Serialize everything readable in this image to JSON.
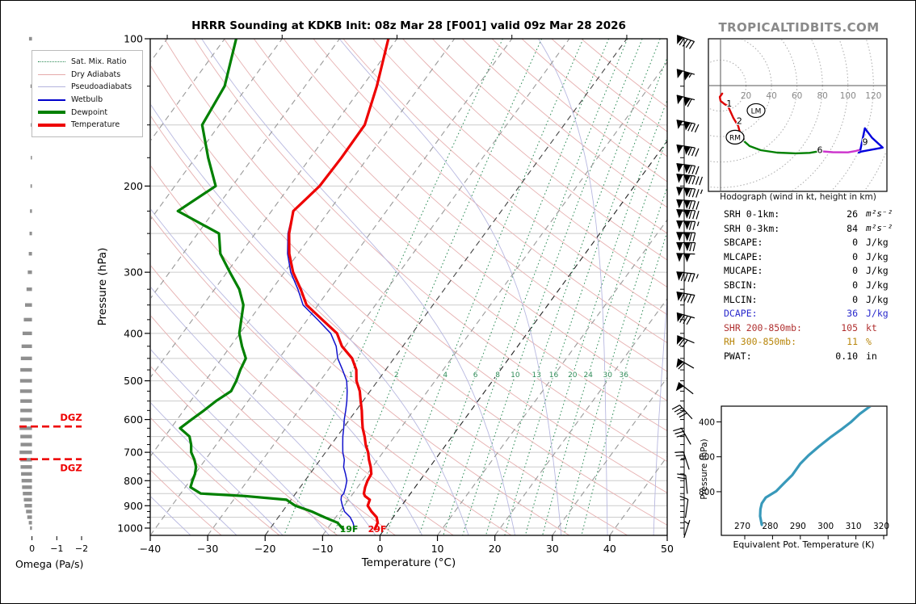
{
  "title": "HRRR Sounding at KDKB Init: 08z Mar 28 [F001] valid 09z Mar 28 2026",
  "watermark": "TROPICALTIDBITS.COM",
  "legend": {
    "items": [
      {
        "label": "Sat. Mix. Ratio",
        "color": "#2e8b57",
        "style": "dotted",
        "weight": 1.5
      },
      {
        "label": "Dry Adiabats",
        "color": "#e6aaaa",
        "style": "solid",
        "weight": 1.2
      },
      {
        "label": "Pseudoadiabats",
        "color": "#b4b4dd",
        "style": "solid",
        "weight": 1.2
      },
      {
        "label": "Wetbulb",
        "color": "#0000cc",
        "style": "solid",
        "weight": 2
      },
      {
        "label": "Dewpoint",
        "color": "#008000",
        "style": "solid",
        "weight": 4
      },
      {
        "label": "Temperature",
        "color": "#ee0000",
        "style": "solid",
        "weight": 4
      }
    ]
  },
  "stats": {
    "rows": [
      {
        "label": "SRH 0-1km:",
        "value": "26",
        "unit": "m²s⁻²",
        "math_unit": true,
        "color": "#000000"
      },
      {
        "label": "SRH 0-3km:",
        "value": "84",
        "unit": "m²s⁻²",
        "math_unit": true,
        "color": "#000000"
      },
      {
        "label": "SBCAPE:",
        "value": "0",
        "unit": "J/kg",
        "math_unit": false,
        "color": "#000000"
      },
      {
        "label": "MLCAPE:",
        "value": "0",
        "unit": "J/kg",
        "math_unit": false,
        "color": "#000000"
      },
      {
        "label": "MUCAPE:",
        "value": "0",
        "unit": "J/kg",
        "math_unit": false,
        "color": "#000000"
      },
      {
        "label": "SBCIN:",
        "value": "0",
        "unit": "J/kg",
        "math_unit": false,
        "color": "#000000"
      },
      {
        "label": "MLCIN:",
        "value": "0",
        "unit": "J/kg",
        "math_unit": false,
        "color": "#000000"
      },
      {
        "label": "DCAPE:",
        "value": "36",
        "unit": "J/kg",
        "math_unit": false,
        "color": "#2929cc"
      },
      {
        "label": "SHR 200-850mb:",
        "value": "105",
        "unit": "kt",
        "math_unit": false,
        "color": "#b03030"
      },
      {
        "label": "RH 300-850mb:",
        "value": "11",
        "unit": "%",
        "math_unit": false,
        "color": "#b8860b"
      },
      {
        "label": "PWAT:",
        "value": "0.10",
        "unit": "in",
        "math_unit": false,
        "color": "#000000"
      }
    ]
  },
  "chart_data": [
    {
      "id": "skewt",
      "type": "line",
      "xlabel": "Temperature (°C)",
      "ylabel": "Pressure (hPa)",
      "x_range": [
        -40,
        50
      ],
      "p_range": [
        100,
        1050
      ],
      "x_ticks": [
        -40,
        -30,
        -20,
        -10,
        0,
        10,
        20,
        30,
        40,
        50
      ],
      "p_ticks": [
        100,
        200,
        300,
        400,
        500,
        600,
        700,
        800,
        900,
        1000
      ],
      "mixratio_values": [
        1,
        2,
        4,
        6,
        8,
        10,
        13,
        16,
        20,
        24,
        30,
        36
      ],
      "surface_labels": {
        "dewp": "19F",
        "temp": "29F"
      },
      "series": [
        {
          "name": "Temperature",
          "color": "#ee0000",
          "width": 3.2,
          "pressure": [
            100,
            125,
            150,
            175,
            200,
            225,
            250,
            275,
            300,
            325,
            350,
            375,
            400,
            425,
            450,
            475,
            500,
            525,
            550,
            575,
            600,
            625,
            650,
            675,
            700,
            725,
            750,
            775,
            800,
            825,
            850,
            860,
            875,
            900,
            925,
            950,
            975,
            1005
          ],
          "values": [
            -61.5,
            -57.5,
            -54.7,
            -54.6,
            -54.8,
            -56.2,
            -54.1,
            -51.5,
            -48.5,
            -45.0,
            -42.0,
            -37.4,
            -33.1,
            -30.6,
            -27.3,
            -25.1,
            -23.7,
            -21.8,
            -20.4,
            -19.0,
            -17.8,
            -16.6,
            -15.2,
            -14.0,
            -12.6,
            -11.5,
            -10.3,
            -9.3,
            -9.1,
            -8.7,
            -8.1,
            -7.6,
            -6.3,
            -5.9,
            -4.5,
            -2.9,
            -2.0,
            -1.7
          ]
        },
        {
          "name": "Dewpoint",
          "color": "#008000",
          "width": 3.2,
          "pressure": [
            100,
            125,
            150,
            175,
            200,
            225,
            250,
            275,
            300,
            325,
            350,
            375,
            400,
            425,
            450,
            475,
            500,
            525,
            550,
            575,
            600,
            625,
            650,
            675,
            700,
            725,
            750,
            775,
            800,
            825,
            850,
            860,
            875,
            900,
            925,
            950,
            975,
            1005
          ],
          "values": [
            -88,
            -84,
            -83,
            -77.8,
            -72.9,
            -76.3,
            -66.3,
            -63.5,
            -59.5,
            -55.7,
            -53.0,
            -51.5,
            -50.1,
            -48.0,
            -45.8,
            -45.3,
            -44.6,
            -44.2,
            -45.6,
            -46.5,
            -47.5,
            -48.4,
            -45.7,
            -44.4,
            -43.4,
            -41.9,
            -40.7,
            -40.0,
            -39.6,
            -39.1,
            -36.5,
            -28.5,
            -20.8,
            -18.5,
            -14.9,
            -12.0,
            -9.0,
            -7.2
          ]
        },
        {
          "name": "Wetbulb",
          "color": "#1111cc",
          "width": 1.5,
          "pressure": [
            100,
            125,
            150,
            175,
            200,
            225,
            250,
            275,
            300,
            325,
            350,
            375,
            400,
            425,
            450,
            475,
            500,
            525,
            550,
            575,
            600,
            625,
            650,
            675,
            700,
            725,
            750,
            775,
            800,
            825,
            850,
            860,
            875,
            900,
            925,
            950,
            975,
            1005
          ],
          "values": [
            -61.5,
            -57.5,
            -54.7,
            -54.6,
            -54.8,
            -56.2,
            -54.3,
            -51.8,
            -48.9,
            -45.5,
            -42.6,
            -38.2,
            -34.2,
            -31.6,
            -29.8,
            -27.5,
            -25.4,
            -24.0,
            -22.8,
            -21.8,
            -20.9,
            -19.9,
            -19.0,
            -18.0,
            -17.0,
            -15.8,
            -15.0,
            -13.8,
            -12.7,
            -12.1,
            -11.6,
            -11.7,
            -11.3,
            -10.3,
            -9.2,
            -7.5,
            -6.3,
            -5.2
          ]
        }
      ]
    },
    {
      "id": "wind_barbs",
      "type": "barbs",
      "units": "kt",
      "levels": [
        {
          "p": 100,
          "spd": 90,
          "dir": 290
        },
        {
          "p": 117,
          "spd": 105,
          "dir": 286
        },
        {
          "p": 132,
          "spd": 110,
          "dir": 284
        },
        {
          "p": 148,
          "spd": 130,
          "dir": 281
        },
        {
          "p": 166,
          "spd": 130,
          "dir": 279
        },
        {
          "p": 181,
          "spd": 130,
          "dir": 277
        },
        {
          "p": 190,
          "spd": 140,
          "dir": 276
        },
        {
          "p": 202,
          "spd": 135,
          "dir": 275
        },
        {
          "p": 214,
          "spd": 130,
          "dir": 274
        },
        {
          "p": 224,
          "spd": 130,
          "dir": 273
        },
        {
          "p": 236,
          "spd": 125,
          "dir": 272
        },
        {
          "p": 249,
          "spd": 120,
          "dir": 271
        },
        {
          "p": 261,
          "spd": 120,
          "dir": 270
        },
        {
          "p": 275,
          "spd": 100,
          "dir": 272
        },
        {
          "p": 301,
          "spd": 95,
          "dir": 276
        },
        {
          "p": 332,
          "spd": 90,
          "dir": 280
        },
        {
          "p": 368,
          "spd": 80,
          "dir": 286
        },
        {
          "p": 412,
          "spd": 70,
          "dir": 293
        },
        {
          "p": 462,
          "spd": 60,
          "dir": 300
        },
        {
          "p": 519,
          "spd": 50,
          "dir": 308
        },
        {
          "p": 581,
          "spd": 40,
          "dir": 318
        },
        {
          "p": 652,
          "spd": 30,
          "dir": 330
        },
        {
          "p": 731,
          "spd": 25,
          "dir": 342
        },
        {
          "p": 818,
          "spd": 20,
          "dir": 355
        },
        {
          "p": 916,
          "spd": 10,
          "dir": 8
        },
        {
          "p": 1008,
          "spd": 5,
          "dir": 18
        }
      ]
    },
    {
      "id": "omega",
      "type": "bar",
      "xlabel": "Omega (Pa/s)",
      "x_ticks": [
        0,
        -1,
        -2
      ],
      "dgz": {
        "label": "DGZ",
        "pressures": [
          620,
          723
        ]
      },
      "bars": [
        [
          100,
          0.12
        ],
        [
          125,
          0.06
        ],
        [
          150,
          0.05
        ],
        [
          175,
          0.05
        ],
        [
          200,
          0.06
        ],
        [
          225,
          0.08
        ],
        [
          250,
          0.1
        ],
        [
          275,
          0.13
        ],
        [
          300,
          0.17
        ],
        [
          325,
          0.22
        ],
        [
          350,
          0.28
        ],
        [
          375,
          0.33
        ],
        [
          400,
          0.38
        ],
        [
          425,
          0.42
        ],
        [
          450,
          0.45
        ],
        [
          475,
          0.47
        ],
        [
          500,
          0.48
        ],
        [
          525,
          0.48
        ],
        [
          550,
          0.47
        ],
        [
          575,
          0.47
        ],
        [
          600,
          0.48
        ],
        [
          625,
          0.5
        ],
        [
          650,
          0.47
        ],
        [
          675,
          0.46
        ],
        [
          700,
          0.5
        ],
        [
          725,
          0.47
        ],
        [
          750,
          0.46
        ],
        [
          775,
          0.44
        ],
        [
          800,
          0.42
        ],
        [
          825,
          0.4
        ],
        [
          850,
          0.37
        ],
        [
          875,
          0.33
        ],
        [
          900,
          0.3
        ],
        [
          925,
          0.24
        ],
        [
          950,
          0.19
        ],
        [
          975,
          0.13
        ],
        [
          1000,
          0.08
        ]
      ]
    },
    {
      "id": "hodograph",
      "type": "line",
      "caption": "Hodograph (wind in kt, height in km)",
      "ring_step": 20,
      "ring_labels": [
        20,
        40,
        60,
        80,
        100,
        120
      ],
      "segments": [
        {
          "km": "0-3",
          "color": "#dd0000",
          "points": [
            [
              1.3,
              -6.3
            ],
            [
              -0.6,
              -8.9
            ],
            [
              0,
              -12
            ],
            [
              3.2,
              -14.6
            ],
            [
              5.7,
              -15.8
            ],
            [
              10.1,
              -25.4
            ],
            [
              13.9,
              -31.7
            ],
            [
              15.2,
              -36.8
            ],
            [
              17.1,
              -42.5
            ]
          ]
        },
        {
          "km": "3-6",
          "color": "#008000",
          "points": [
            [
              17.1,
              -42.5
            ],
            [
              22.8,
              -47.5
            ],
            [
              31.6,
              -50.7
            ],
            [
              44.4,
              -52.6
            ],
            [
              59,
              -53.2
            ],
            [
              70,
              -52.8
            ],
            [
              77.8,
              -51.5
            ]
          ]
        },
        {
          "km": "6-9",
          "color": "#cc33cc",
          "points": [
            [
              77.8,
              -51.5
            ],
            [
              88,
              -52.3
            ],
            [
              100,
              -52.4
            ],
            [
              106.3,
              -51.3
            ],
            [
              109.8,
              -50.3
            ]
          ]
        },
        {
          "km": "9-12",
          "color": "#0000dd",
          "points": [
            [
              109.8,
              -50.3
            ],
            [
              111.5,
              -42
            ],
            [
              113.3,
              -33.5
            ],
            [
              119,
              -41.1
            ],
            [
              127.3,
              -48.7
            ],
            [
              110.5,
              -51.8
            ],
            [
              108.5,
              -52.6
            ]
          ]
        }
      ],
      "height_labels": [
        {
          "text": "1",
          "u": 6.8,
          "v": -13.8
        },
        {
          "text": "2",
          "u": 14.8,
          "v": -27.5
        },
        {
          "text": "3",
          "u": 17.2,
          "v": -40.8
        },
        {
          "text": "6",
          "u": 78,
          "v": -50.3
        },
        {
          "text": "9",
          "u": 113.5,
          "v": -44
        }
      ],
      "storm_markers": [
        {
          "label": "LM",
          "u": 27.9,
          "v": -19.6
        },
        {
          "label": "RM",
          "u": 11.4,
          "v": -40.5
        }
      ]
    },
    {
      "id": "theta_e",
      "type": "line",
      "xlabel": "Equivalent Pot. Temperature (K)",
      "ylabel": "Pressure (hPa)",
      "x_ticks": [
        270,
        280,
        290,
        300,
        310,
        320
      ],
      "p_ticks": [
        400,
        600,
        800
      ],
      "color": "#3899ba",
      "pressure": [
        990,
        940,
        900,
        867,
        834,
        797,
        750,
        704,
        639,
        592,
        541,
        485,
        439,
        402,
        355,
        308
      ],
      "values": [
        277.0,
        276.4,
        276.5,
        277.0,
        278.4,
        282.2,
        285.1,
        288.0,
        290.9,
        293.8,
        297.6,
        302.0,
        306.0,
        309.0,
        312.2,
        316.2
      ]
    }
  ]
}
